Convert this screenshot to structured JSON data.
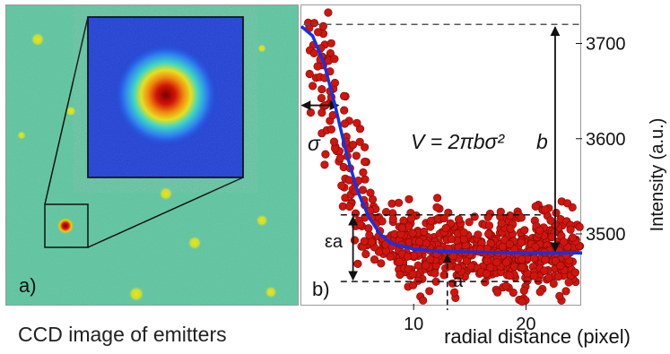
{
  "panel_a": {
    "label": "a)",
    "caption": "CCD image of emitters"
  },
  "panel_b": {
    "label": "b)",
    "sigma_label": "σ",
    "epsilon_label": "εa",
    "a_label": "a",
    "b_label": "b",
    "formula": "V = 2πbσ²"
  },
  "colors": {
    "background_field": "#5cc6a0",
    "inset_background": "#1e3fd6",
    "fit_line": "#1432e6",
    "points": "#d0150e"
  },
  "chart_data": {
    "type": "scatter",
    "xlabel": "radial distance (pixel)",
    "ylabel": "Intensity (a.u.)",
    "xlim": [
      0,
      25
    ],
    "ylim": [
      3420,
      3740
    ],
    "x_ticks": [
      10,
      20
    ],
    "y_ticks": [
      3500,
      3600,
      3700
    ],
    "grid": false,
    "series": [
      {
        "type": "line",
        "points": [
          [
            0,
            3718
          ],
          [
            1,
            3708
          ],
          [
            2,
            3680
          ],
          [
            3,
            3635
          ],
          [
            4,
            3585
          ],
          [
            5,
            3545
          ],
          [
            6,
            3518
          ],
          [
            7,
            3500
          ],
          [
            8,
            3490
          ],
          [
            10,
            3484
          ],
          [
            12,
            3482
          ],
          [
            15,
            3481
          ],
          [
            20,
            3480
          ],
          [
            25,
            3480
          ]
        ]
      }
    ],
    "annotations": {
      "max_level": 3720,
      "baseline": 3480,
      "upper_noise": 3520,
      "lower_noise": 3450,
      "a_x": 13,
      "sigma_x": 3.3
    }
  }
}
